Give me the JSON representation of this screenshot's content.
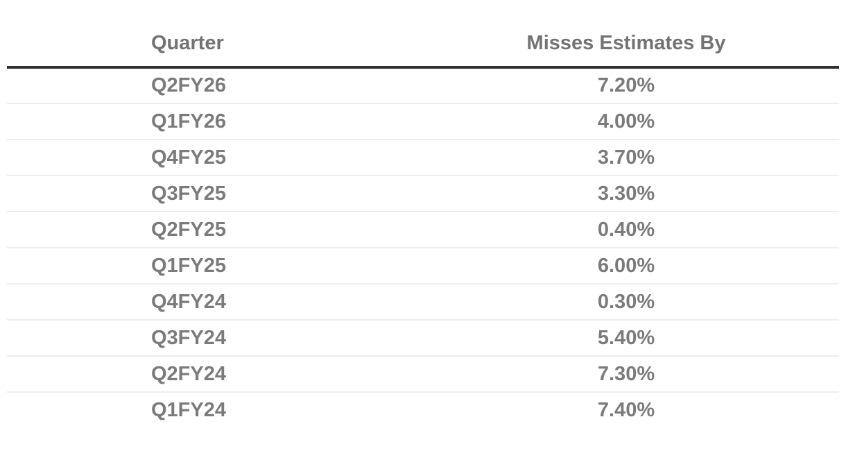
{
  "chart_data": {
    "type": "table",
    "title": "",
    "columns": [
      "Quarter",
      "Misses Estimates By"
    ],
    "categories": [
      "Q2FY26",
      "Q1FY26",
      "Q4FY25",
      "Q3FY25",
      "Q2FY25",
      "Q1FY25",
      "Q4FY24",
      "Q3FY24",
      "Q2FY24",
      "Q1FY24"
    ],
    "values": [
      7.2,
      4.0,
      3.7,
      3.3,
      0.4,
      6.0,
      0.3,
      5.4,
      7.3,
      7.4
    ],
    "value_format": "percent",
    "layout_hints": {
      "header_rule": "thick dark line under header",
      "row_dividers": "thin light gray",
      "column_1_align": "left",
      "column_2_align": "center"
    }
  },
  "table": {
    "columns": [
      {
        "label": "Quarter"
      },
      {
        "label": "Misses Estimates By"
      }
    ],
    "rows": [
      {
        "quarter": "Q2FY26",
        "miss": "7.20%"
      },
      {
        "quarter": "Q1FY26",
        "miss": "4.00%"
      },
      {
        "quarter": "Q4FY25",
        "miss": "3.70%"
      },
      {
        "quarter": "Q3FY25",
        "miss": "3.30%"
      },
      {
        "quarter": "Q2FY25",
        "miss": "0.40%"
      },
      {
        "quarter": "Q1FY25",
        "miss": "6.00%"
      },
      {
        "quarter": "Q4FY24",
        "miss": "0.30%"
      },
      {
        "quarter": "Q3FY24",
        "miss": "5.40%"
      },
      {
        "quarter": "Q2FY24",
        "miss": "7.30%"
      },
      {
        "quarter": "Q1FY24",
        "miss": "7.40%"
      }
    ]
  },
  "colors": {
    "header_rule": "#2f2f2f",
    "row_divider": "#ededed",
    "header_text": "#737373",
    "cell_text": "#7b7b7b",
    "background": "#ffffff"
  }
}
